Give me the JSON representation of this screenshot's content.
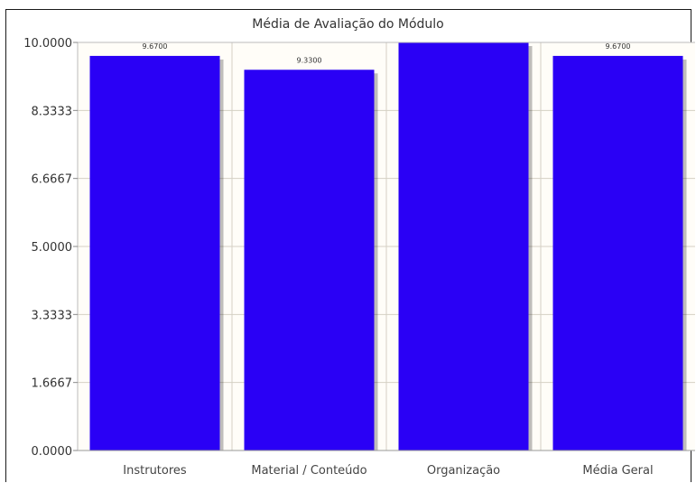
{
  "chart_data": {
    "type": "bar",
    "title": "Média de Avaliação do Módulo",
    "categories": [
      "Instrutores",
      "Material / Conteúdo",
      "Organização",
      "Média Geral"
    ],
    "values": [
      9.67,
      9.33,
      10.0,
      9.67
    ],
    "data_labels": [
      "9.6700",
      "9.3300",
      "",
      "9.6700"
    ],
    "yticks": [
      "0.0000",
      "1.6667",
      "3.3333",
      "5.0000",
      "6.6667",
      "8.3333",
      "10.0000"
    ],
    "ylim": [
      0,
      10
    ],
    "grid": true,
    "bar_color": "#2a00f5",
    "plot_background": "#fffdf8",
    "grid_color": "#d4d0c4"
  }
}
